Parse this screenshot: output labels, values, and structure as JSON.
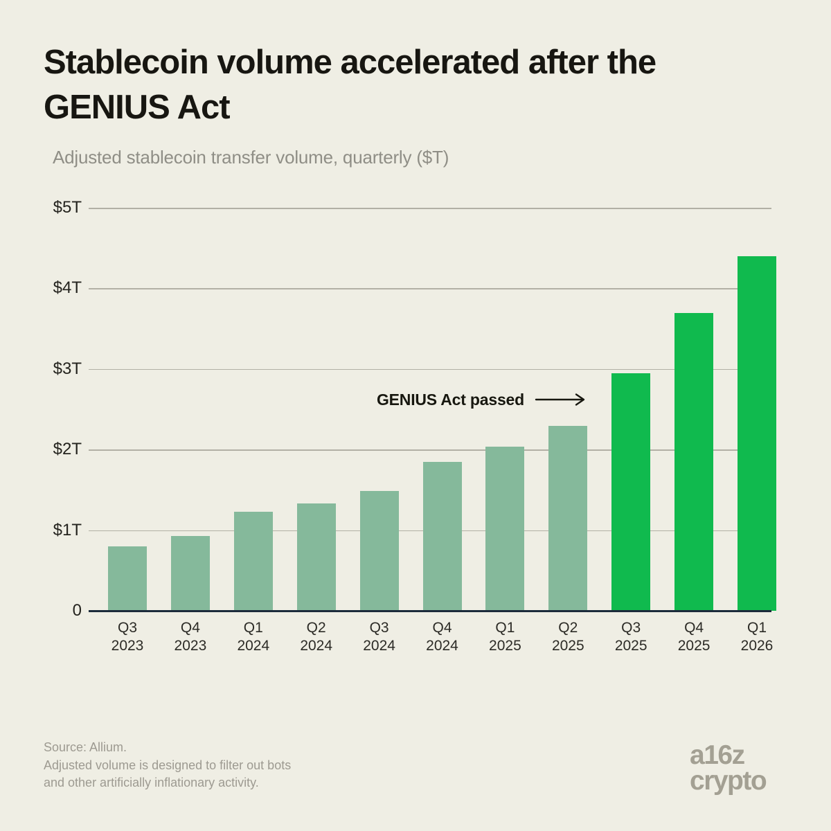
{
  "title": "Stablecoin volume accelerated after the GENIUS Act",
  "subtitle": "Adjusted stablecoin transfer volume, quarterly ($T)",
  "chart_data": {
    "type": "bar",
    "categories": [
      "Q3 2023",
      "Q4 2023",
      "Q1 2024",
      "Q2 2024",
      "Q3 2024",
      "Q4 2024",
      "Q1 2025",
      "Q2 2025",
      "Q3 2025",
      "Q4 2025",
      "Q1 2026"
    ],
    "category_lines": [
      [
        "Q3",
        "2023"
      ],
      [
        "Q4",
        "2023"
      ],
      [
        "Q1",
        "2024"
      ],
      [
        "Q2",
        "2024"
      ],
      [
        "Q3",
        "2024"
      ],
      [
        "Q4",
        "2024"
      ],
      [
        "Q1",
        "2025"
      ],
      [
        "Q2",
        "2025"
      ],
      [
        "Q3",
        "2025"
      ],
      [
        "Q4",
        "2025"
      ],
      [
        "Q1",
        "2026"
      ]
    ],
    "values": [
      0.8,
      0.93,
      1.23,
      1.33,
      1.49,
      1.85,
      2.04,
      2.29,
      2.95,
      3.69,
      4.4
    ],
    "title": "Stablecoin volume accelerated after the GENIUS Act",
    "subtitle": "Adjusted stablecoin transfer volume, quarterly ($T)",
    "xlabel": "",
    "ylabel": "Adjusted stablecoin transfer volume ($T)",
    "ylim": [
      0,
      5
    ],
    "yticks": [
      {
        "label": "$5T",
        "value": 5
      },
      {
        "label": "$4T",
        "value": 4
      },
      {
        "label": "$3T",
        "value": 3
      },
      {
        "label": "$2T",
        "value": 2
      },
      {
        "label": "$1T",
        "value": 1
      },
      {
        "label": "0",
        "value": 0
      }
    ],
    "grid": "horizontal",
    "legend": "none",
    "highlight_start_index": 8,
    "annotation": {
      "text": "GENIUS Act passed",
      "target_category": "Q3 2025"
    }
  },
  "colors": {
    "background": "#efeee4",
    "bar_before_act": "#85b99b",
    "bar_after_act": "#10ba4e",
    "gridline": "#b2b0a5",
    "baseline": "#1c2b3b",
    "title_text": "#171611",
    "subtitle_text": "#8f8e86",
    "annotation_text": "#17170f",
    "footer_text": "#9d9a91",
    "logo_text": "#a3a093"
  },
  "footer": {
    "line1": "Source: Allium.",
    "line2": "Adjusted volume is designed to filter out bots",
    "line3": "and other artificially inflationary activity."
  },
  "logo": {
    "line1": "a16z",
    "line2": "crypto"
  }
}
